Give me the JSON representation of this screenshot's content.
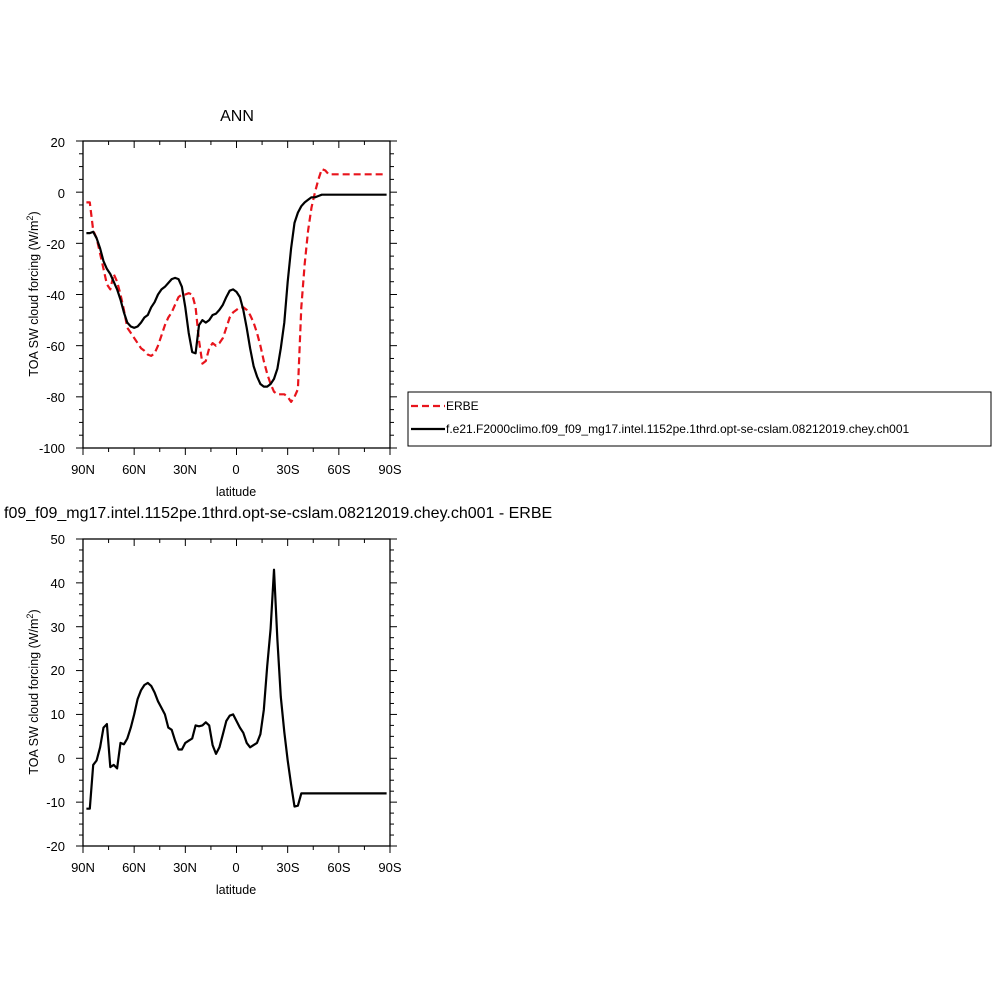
{
  "chart_data": [
    {
      "type": "line",
      "title": "ANN",
      "xlabel": "latitude",
      "ylabel": "TOA SW cloud forcing (W/m",
      "ylabel_sup": "2",
      "ylabel_end": ")",
      "xlim": [
        -90,
        90
      ],
      "ylim": [
        -100,
        20
      ],
      "x_ticks": [
        -90,
        -60,
        -30,
        0,
        30,
        60,
        90
      ],
      "x_tick_labels": [
        "90N",
        "60N",
        "30N",
        "0",
        "30S",
        "60S",
        "90S"
      ],
      "y_ticks": [
        -100,
        -80,
        -60,
        -40,
        -20,
        0,
        20
      ],
      "y_tick_labels": [
        "-100",
        "-80",
        "-60",
        "-40",
        "-20",
        "0",
        "20"
      ],
      "legend_position": "right, outside plot",
      "series": [
        {
          "name": "ERBE",
          "color": "#e8141c",
          "dash": "dashed",
          "x": [
            -88,
            -86,
            -84,
            -82,
            -80,
            -78,
            -76,
            -74,
            -72,
            -70,
            -68,
            -66,
            -64,
            -62,
            -60,
            -58,
            -56,
            -54,
            -52,
            -50,
            -48,
            -46,
            -44,
            -42,
            -40,
            -38,
            -36,
            -34,
            -32,
            -30,
            -28,
            -26,
            -24,
            -22,
            -20,
            -18,
            -16,
            -14,
            -12,
            -10,
            -8,
            -6,
            -4,
            -2,
            0,
            2,
            4,
            6,
            8,
            10,
            12,
            14,
            16,
            18,
            20,
            22,
            24,
            26,
            28,
            30,
            32,
            34,
            36,
            38,
            40,
            42,
            44,
            46,
            48,
            50,
            52,
            54,
            56,
            58,
            60,
            62,
            64,
            66,
            68,
            70,
            72,
            74,
            76,
            78,
            80,
            82,
            84,
            86,
            88
          ],
          "y": [
            -4,
            -4,
            -15,
            -18,
            -24,
            -30,
            -36,
            -38,
            -32,
            -35,
            -40,
            -46,
            -53,
            -55,
            -57,
            -59,
            -61,
            -62,
            -63.5,
            -64,
            -63,
            -60,
            -56,
            -52,
            -49,
            -47,
            -44,
            -41,
            -40,
            -40,
            -39.5,
            -40,
            -45,
            -58,
            -67,
            -66,
            -61,
            -59,
            -60,
            -59,
            -57,
            -53,
            -49,
            -47,
            -46,
            -45,
            -45,
            -46,
            -48,
            -51,
            -55,
            -60,
            -66,
            -71,
            -75,
            -78,
            -79,
            -79,
            -79,
            -80,
            -82,
            -80,
            -77,
            -45,
            -28,
            -15,
            -6,
            0,
            5,
            9,
            8.5,
            7,
            7,
            7,
            7,
            7,
            7,
            7,
            7,
            7,
            7,
            7,
            7,
            7,
            7,
            7,
            7,
            7,
            7
          ],
          "x_visible_max": 88
        },
        {
          "name": "f.e21.F2000climo.f09_f09_mg17.intel.1152pe.1thrd.opt-se-cslam.08212019.chey.ch001",
          "color": "#000000",
          "dash": "solid",
          "x": [
            -88,
            -86,
            -84,
            -82,
            -80,
            -78,
            -76,
            -74,
            -72,
            -70,
            -68,
            -66,
            -64,
            -62,
            -60,
            -58,
            -56,
            -54,
            -52,
            -50,
            -48,
            -46,
            -44,
            -42,
            -40,
            -38,
            -36,
            -34,
            -32,
            -30,
            -28,
            -26,
            -24,
            -22,
            -20,
            -18,
            -16,
            -14,
            -12,
            -10,
            -8,
            -6,
            -4,
            -2,
            0,
            2,
            4,
            6,
            8,
            10,
            12,
            14,
            16,
            18,
            20,
            22,
            24,
            26,
            28,
            30,
            32,
            34,
            36,
            38,
            40,
            42,
            44,
            46,
            48,
            50,
            52,
            54,
            56,
            58,
            60,
            62,
            64,
            66,
            68,
            70,
            72,
            74,
            76,
            78,
            80,
            82,
            84,
            86,
            88
          ],
          "y": [
            -16,
            -16,
            -15.5,
            -18,
            -22,
            -27,
            -30,
            -32,
            -35,
            -38,
            -42,
            -47,
            -51,
            -52.5,
            -53,
            -52.5,
            -51,
            -49,
            -48,
            -45,
            -43,
            -40,
            -38,
            -37,
            -35.5,
            -34,
            -33.5,
            -34,
            -37,
            -45,
            -55,
            -62.5,
            -63,
            -52,
            -50,
            -51,
            -50,
            -48,
            -47.5,
            -46,
            -44,
            -41,
            -38.5,
            -38,
            -39,
            -41,
            -46,
            -53,
            -61,
            -68,
            -72,
            -75,
            -76,
            -76,
            -75,
            -73,
            -69,
            -61,
            -51,
            -35,
            -22,
            -12,
            -8,
            -5.5,
            -4,
            -3,
            -2,
            -2,
            -1.5,
            -1,
            -1,
            -1,
            -1,
            -1,
            -1,
            -1,
            -1,
            -1,
            -1,
            -1,
            -1,
            -1,
            -1,
            -1,
            -1,
            -1,
            -1,
            -1,
            -1
          ],
          "x_visible_max": 88
        }
      ]
    },
    {
      "type": "line",
      "title": "f09_f09_mg17.intel.1152pe.1thrd.opt-se-cslam.08212019.chey.ch001 - ERBE",
      "xlabel": "latitude",
      "ylabel": "TOA SW cloud forcing (W/m",
      "ylabel_sup": "2",
      "ylabel_end": ")",
      "xlim": [
        -90,
        90
      ],
      "ylim": [
        -20,
        50
      ],
      "x_ticks": [
        -90,
        -60,
        -30,
        0,
        30,
        60,
        90
      ],
      "x_tick_labels": [
        "90N",
        "60N",
        "30N",
        "0",
        "30S",
        "60S",
        "90S"
      ],
      "y_ticks": [
        -20,
        -10,
        0,
        10,
        20,
        30,
        40,
        50
      ],
      "y_tick_labels": [
        "-20",
        "-10",
        "0",
        "10",
        "20",
        "30",
        "40",
        "50"
      ],
      "series": [
        {
          "color": "#000000",
          "dash": "solid",
          "x": [
            -88,
            -86,
            -84,
            -82,
            -80,
            -78,
            -76,
            -74,
            -72,
            -70,
            -68,
            -66,
            -64,
            -62,
            -60,
            -58,
            -56,
            -54,
            -52,
            -50,
            -48,
            -46,
            -44,
            -42,
            -40,
            -38,
            -36,
            -34,
            -32,
            -30,
            -28,
            -26,
            -24,
            -22,
            -20,
            -18,
            -16,
            -14,
            -12,
            -10,
            -8,
            -6,
            -4,
            -2,
            0,
            2,
            4,
            6,
            8,
            10,
            12,
            14,
            16,
            18,
            20,
            22,
            24,
            26,
            28,
            30,
            32,
            34,
            36,
            38,
            40,
            42,
            44,
            46,
            48,
            50,
            52,
            54,
            56,
            58,
            60,
            62,
            64,
            66,
            68,
            70,
            72,
            74,
            76,
            78,
            80,
            82,
            84,
            86,
            88
          ],
          "y": [
            -11.5,
            -11.5,
            -1.5,
            -0.5,
            2.5,
            7,
            7.8,
            -2,
            -1.5,
            -2.3,
            3.5,
            3.2,
            4.5,
            7,
            10,
            13.5,
            15.5,
            16.7,
            17.2,
            16.5,
            15,
            13,
            11.5,
            10,
            7,
            6.5,
            4,
            2,
            2,
            3.5,
            4,
            4.5,
            7.5,
            7.3,
            7.5,
            8.2,
            7.5,
            3,
            1,
            2.5,
            5.5,
            8.5,
            9.7,
            10,
            8.5,
            7,
            5.8,
            3.5,
            2.5,
            3,
            3.5,
            5.5,
            11,
            21,
            29.5,
            43,
            27,
            14,
            6,
            -0.5,
            -6,
            -11,
            -10.8,
            -8,
            -8,
            -8,
            -8,
            -8,
            -8,
            -8,
            -8,
            -8,
            -8,
            -8,
            -8,
            -8,
            -8,
            -8,
            -8,
            -8,
            -8,
            -8,
            -8,
            -8,
            -8,
            -8,
            -8,
            -8,
            -8
          ],
          "x_visible_max": 88
        }
      ]
    }
  ]
}
